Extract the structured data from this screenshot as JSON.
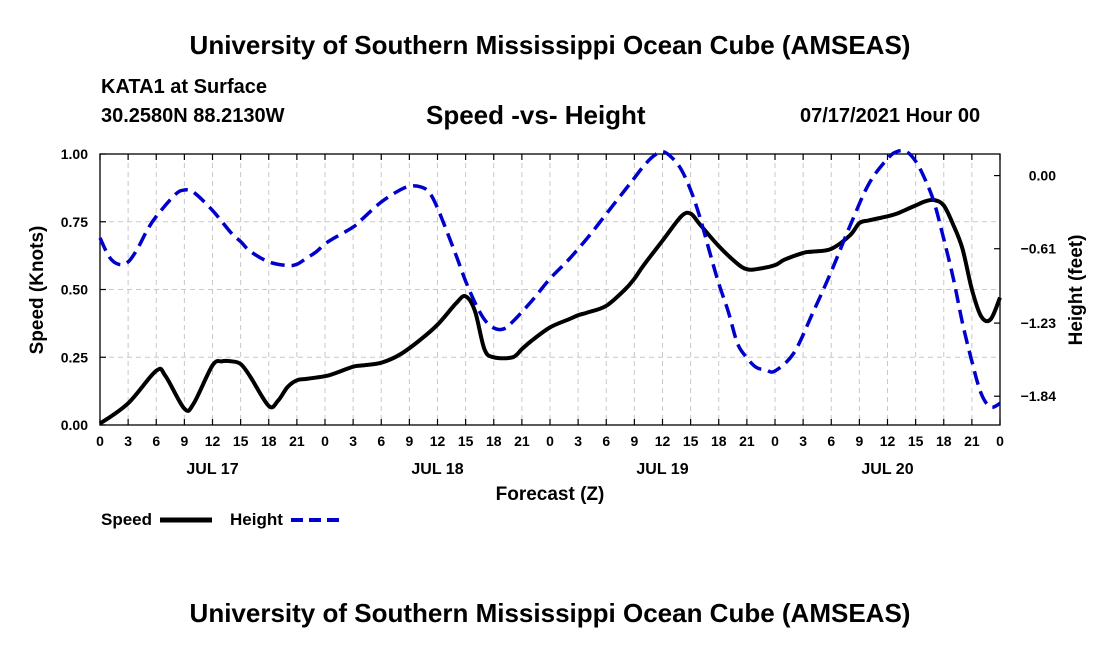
{
  "header": {
    "title": "University of Southern Mississippi Ocean Cube (AMSEAS)",
    "station": "KATA1 at Surface",
    "coords": "30.2580N  88.2130W",
    "subtitle": "Speed -vs- Height",
    "datetime": "07/17/2021 Hour 00"
  },
  "footer": {
    "title": "University of Southern Mississippi Ocean Cube (AMSEAS)"
  },
  "chart_data": {
    "type": "line",
    "title": "Speed -vs- Height",
    "xlabel": "Forecast (Z)",
    "ylabel": "Speed (Knots)",
    "ylabel_right": "Height (feet)",
    "x_range": [
      0,
      96
    ],
    "ylim": [
      0,
      1
    ],
    "ylim_right": [
      -2.08,
      0.18
    ],
    "y_ticks": [
      0,
      0.25,
      0.5,
      0.75,
      1
    ],
    "y_tick_labels": [
      "0.00",
      "0.25",
      "0.50",
      "0.75",
      "1.00"
    ],
    "y_right_ticks": [
      0,
      -0.61,
      -1.23,
      -1.84
    ],
    "y_right_tick_labels": [
      "0.00",
      "−0.61",
      "−1.23",
      "−1.84"
    ],
    "x_ticks": [
      0,
      3,
      6,
      9,
      12,
      15,
      18,
      21,
      24,
      27,
      30,
      33,
      36,
      39,
      42,
      45,
      48,
      51,
      54,
      57,
      60,
      63,
      66,
      69,
      72,
      75,
      78,
      81,
      84,
      87,
      90,
      93,
      96
    ],
    "x_tick_labels": [
      "0",
      "3",
      "6",
      "9",
      "12",
      "15",
      "18",
      "21",
      "0",
      "3",
      "6",
      "9",
      "12",
      "15",
      "18",
      "21",
      "0",
      "3",
      "6",
      "9",
      "12",
      "15",
      "18",
      "21",
      "0",
      "3",
      "6",
      "9",
      "12",
      "15",
      "18",
      "21",
      "0"
    ],
    "day_labels": [
      {
        "x": 12,
        "label": "JUL 17"
      },
      {
        "x": 36,
        "label": "JUL 18"
      },
      {
        "x": 60,
        "label": "JUL 19"
      },
      {
        "x": 84,
        "label": "JUL 20"
      }
    ],
    "grid": true,
    "series": [
      {
        "name": "Speed",
        "axis": "left",
        "color": "#000000",
        "dash": "solid",
        "x": [
          0,
          3,
          6,
          7,
          9,
          10,
          12,
          13,
          14,
          15,
          16,
          18,
          19,
          20,
          21,
          22,
          24,
          25,
          27,
          28,
          30,
          32,
          34,
          36,
          38,
          39,
          40,
          41,
          42,
          44,
          45,
          46,
          48,
          50,
          51,
          52,
          54,
          56,
          57,
          58,
          60,
          62,
          63,
          64,
          66,
          68,
          69,
          70,
          72,
          73,
          75,
          76,
          78,
          80,
          81,
          82,
          84,
          85,
          86,
          87,
          88,
          89,
          90,
          91,
          92,
          93,
          94,
          95,
          96
        ],
        "y": [
          0.005,
          0.08,
          0.2,
          0.18,
          0.06,
          0.08,
          0.22,
          0.235,
          0.235,
          0.225,
          0.18,
          0.07,
          0.09,
          0.14,
          0.165,
          0.17,
          0.18,
          0.19,
          0.215,
          0.22,
          0.23,
          0.26,
          0.31,
          0.37,
          0.45,
          0.475,
          0.42,
          0.28,
          0.25,
          0.25,
          0.28,
          0.31,
          0.36,
          0.39,
          0.405,
          0.415,
          0.44,
          0.5,
          0.54,
          0.59,
          0.68,
          0.77,
          0.78,
          0.74,
          0.66,
          0.595,
          0.575,
          0.575,
          0.59,
          0.61,
          0.635,
          0.64,
          0.65,
          0.7,
          0.745,
          0.755,
          0.77,
          0.78,
          0.795,
          0.81,
          0.825,
          0.83,
          0.81,
          0.74,
          0.65,
          0.5,
          0.4,
          0.39,
          0.47
        ]
      },
      {
        "name": "Height",
        "axis": "right",
        "color": "#0000cc",
        "dash": "dashed",
        "x": [
          0,
          1,
          2,
          3,
          4,
          5,
          6,
          8,
          9,
          10,
          12,
          14,
          15,
          16,
          18,
          20,
          21,
          22,
          23,
          24,
          25,
          27,
          28,
          30,
          32,
          33,
          34,
          35,
          36,
          38,
          39,
          40,
          41,
          42,
          43,
          44,
          46,
          48,
          50,
          52,
          54,
          56,
          57,
          58,
          59,
          60,
          61,
          62,
          63,
          64,
          65,
          66,
          67,
          68,
          69,
          70,
          71,
          72,
          74,
          76,
          78,
          80,
          82,
          84,
          85,
          86,
          87,
          88,
          89,
          90,
          91,
          92,
          93,
          94,
          95,
          96
        ],
        "y": [
          -0.52,
          -0.68,
          -0.74,
          -0.72,
          -0.61,
          -0.46,
          -0.34,
          -0.16,
          -0.12,
          -0.14,
          -0.29,
          -0.48,
          -0.55,
          -0.63,
          -0.72,
          -0.75,
          -0.74,
          -0.69,
          -0.64,
          -0.57,
          -0.52,
          -0.43,
          -0.36,
          -0.22,
          -0.12,
          -0.09,
          -0.09,
          -0.13,
          -0.27,
          -0.67,
          -0.88,
          -1.06,
          -1.2,
          -1.27,
          -1.28,
          -1.22,
          -1.05,
          -0.86,
          -0.7,
          -0.52,
          -0.32,
          -0.12,
          -0.02,
          0.08,
          0.16,
          0.2,
          0.15,
          0.05,
          -0.12,
          -0.35,
          -0.63,
          -0.9,
          -1.13,
          -1.4,
          -1.52,
          -1.6,
          -1.62,
          -1.63,
          -1.48,
          -1.15,
          -0.8,
          -0.42,
          -0.07,
          0.14,
          0.2,
          0.2,
          0.12,
          -0.03,
          -0.23,
          -0.53,
          -0.85,
          -1.23,
          -1.55,
          -1.82,
          -1.93,
          -1.9
        ]
      }
    ],
    "legend": {
      "placement": "bottom-left",
      "items": [
        {
          "label": "Speed",
          "color": "#000000",
          "dash": "solid"
        },
        {
          "label": "Height",
          "color": "#0000cc",
          "dash": "dashed"
        }
      ]
    }
  }
}
